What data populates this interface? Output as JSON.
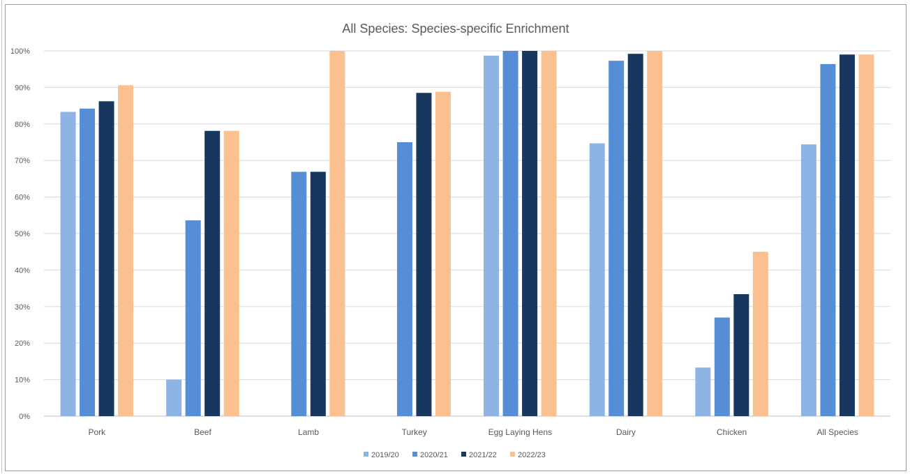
{
  "chart_data": {
    "type": "bar",
    "title": "All Species: Species-specific Enrichment",
    "xlabel": "",
    "ylabel": "",
    "ylim": [
      0,
      100
    ],
    "y_ticks": [
      "0%",
      "10%",
      "20%",
      "30%",
      "40%",
      "50%",
      "60%",
      "70%",
      "80%",
      "90%",
      "100%"
    ],
    "grid": true,
    "legend_position": "bottom",
    "categories": [
      "Pork",
      "Beef",
      "Lamb",
      "Turkey",
      "Egg Laying Hens",
      "Dairy",
      "Chicken",
      "All Species"
    ],
    "series": [
      {
        "name": "2019/20",
        "color": "#8eb4e3",
        "values": [
          83.3,
          10,
          0,
          0,
          98.7,
          74.7,
          13.3,
          74.4
        ]
      },
      {
        "name": "2020/21",
        "color": "#558ed5",
        "values": [
          84.2,
          53.6,
          66.9,
          75,
          100,
          97.3,
          27,
          96.4
        ]
      },
      {
        "name": "2021/22",
        "color": "#17375e",
        "values": [
          86.2,
          78.1,
          66.9,
          88.5,
          100,
          99.2,
          33.4,
          99
        ]
      },
      {
        "name": "2022/23",
        "color": "#fac090",
        "values": [
          90.6,
          78.1,
          100,
          88.8,
          100,
          100,
          45,
          99
        ]
      }
    ]
  }
}
